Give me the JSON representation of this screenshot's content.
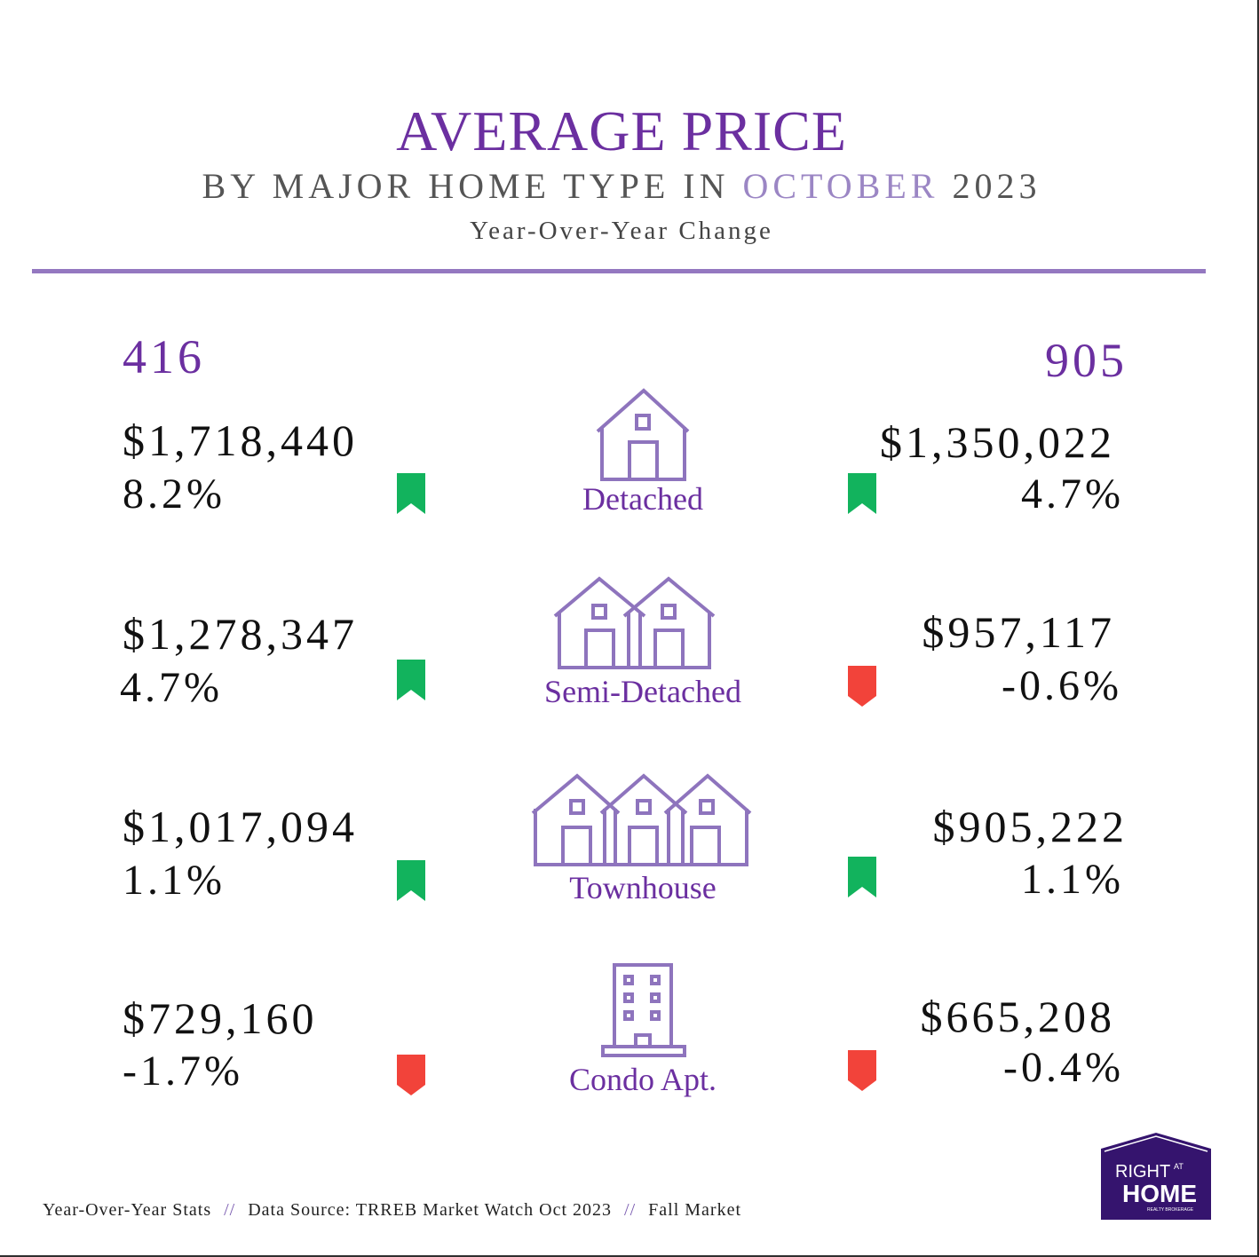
{
  "header": {
    "title": "AVERAGE PRICE",
    "subtitle_prefix": "BY MAJOR HOME TYPE IN",
    "subtitle_month": "OCTOBER",
    "subtitle_year": "2023",
    "tagline": "Year-Over-Year Change"
  },
  "regions": {
    "left": "416",
    "right": "905"
  },
  "rows": [
    {
      "type": "Detached",
      "icon": "house-icon",
      "left": {
        "price": "$1,718,440",
        "change": "8.2%",
        "direction": "up"
      },
      "right": {
        "price": "$1,350,022",
        "change": "4.7%",
        "direction": "up"
      }
    },
    {
      "type": "Semi-Detached",
      "icon": "semi-detached-icon",
      "left": {
        "price": "$1,278,347",
        "change": "4.7%",
        "direction": "up"
      },
      "right": {
        "price": "$957,117",
        "change": "-0.6%",
        "direction": "down"
      }
    },
    {
      "type": "Townhouse",
      "icon": "townhouse-icon",
      "left": {
        "price": "$1,017,094",
        "change": "1.1%",
        "direction": "up"
      },
      "right": {
        "price": "$905,222",
        "change": "1.1%",
        "direction": "up"
      }
    },
    {
      "type": "Condo Apt.",
      "icon": "condo-building-icon",
      "left": {
        "price": "$729,160",
        "change": "-1.7%",
        "direction": "down"
      },
      "right": {
        "price": "$665,208",
        "change": "-0.4%",
        "direction": "down"
      }
    }
  ],
  "footer": {
    "item1": "Year-Over-Year Stats",
    "item2": "Data Source: TRREB Market Watch Oct 2023",
    "item3": "Fall Market",
    "separator": "//"
  },
  "logo": {
    "line1": "RIGHT",
    "line1_small": "AT",
    "line2": "HOME",
    "line3": "REALTY BROKERAGE"
  },
  "colors": {
    "accent": "#6b2fa0",
    "icon_stroke": "#8e74bd",
    "up": "#12b35d",
    "down": "#f2433a",
    "rule": "#9478c0",
    "logo_bg": "#35146e"
  }
}
